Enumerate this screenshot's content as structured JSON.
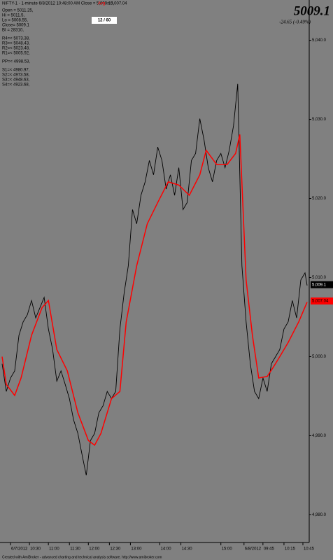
{
  "chart_data": {
    "type": "line",
    "title": "NIFTY-1 - 1-minute 6/8/2012 10:48:00 AM Close = 5,009.10,",
    "title_red": "Avg",
    "title_tail": "= 5,007.04",
    "info_lines": [
      "Open =  5011.25,",
      "Hi      =  5011.5,",
      "Lo      =  5008.55,",
      "Close=  5009.1",
      "BI  =  28310,",
      "R4=<  5073.38,",
      "R3=<  5048.43,",
      "R2=<  5023.48,",
      "R1=<  5005.92,",
      "PP=<  4998.53,",
      "S1=<  4980.97,",
      "S2=<  4973.58,",
      "S3=<  4948.63,",
      "S4=<  4923.68,"
    ],
    "counter": "12 / 60",
    "last_price": "5009.1",
    "change": "-24.65  (-0.49%)",
    "footer": "Created with AmiBroker - advanced charting and technical analysis software. http://www.amibroker.com",
    "xlim": [
      0,
      147
    ],
    "xticks": [
      {
        "value": 5,
        "label": "6/7/2012"
      },
      {
        "value": 14,
        "label": "10:30"
      },
      {
        "value": 23,
        "label": "11:00"
      },
      {
        "value": 33,
        "label": "11:30"
      },
      {
        "value": 42,
        "label": "12:00"
      },
      {
        "value": 52,
        "label": "12:30"
      },
      {
        "value": 62,
        "label": "13:00"
      },
      {
        "value": 76,
        "label": "14:00"
      },
      {
        "value": 86,
        "label": "14:30"
      },
      {
        "value": 105,
        "label": "15:00"
      },
      {
        "value": 116,
        "label": "6/8/2012"
      },
      {
        "value": 125,
        "label": "09:45"
      },
      {
        "value": 135,
        "label": "10:15"
      },
      {
        "value": 144,
        "label": "10:45"
      }
    ],
    "ylim": [
      4976.5,
      5045.1
    ],
    "yticks": [
      {
        "value": 4980,
        "label": "4,980.0"
      },
      {
        "value": 4990,
        "label": "4,990.0"
      },
      {
        "value": 5000,
        "label": "5,000.0"
      },
      {
        "value": 5010,
        "label": "5,010.0"
      },
      {
        "value": 5020,
        "label": "5,020.0"
      },
      {
        "value": 5030,
        "label": "5,030.0"
      },
      {
        "value": 5040,
        "label": "5,040.0"
      }
    ],
    "series": [
      {
        "name": "NIFTY-1",
        "color": "#000000",
        "x": [
          1,
          3,
          5,
          7,
          9,
          11,
          13,
          15,
          17,
          19,
          21,
          23,
          25,
          27,
          29,
          31,
          33,
          35,
          37,
          39,
          41,
          43,
          45,
          47,
          49,
          51,
          53,
          55,
          57,
          59,
          61,
          63,
          65,
          67,
          69,
          71,
          73,
          75,
          77,
          79,
          81,
          83,
          85,
          87,
          89,
          91,
          93,
          95,
          97,
          99,
          101,
          103,
          105,
          107,
          109,
          111,
          113,
          115,
          117,
          119,
          121,
          123,
          125,
          127,
          129,
          131,
          133,
          135,
          137,
          139,
          141,
          143,
          145,
          146
        ],
        "values": [
          4999.1,
          4995.6,
          4997.3,
          4998.2,
          5002.7,
          5004.4,
          5005.3,
          5007.1,
          5004.9,
          5006.2,
          5007.5,
          5003.5,
          5000.9,
          4996.9,
          4998.2,
          4996.5,
          4994.7,
          4992.0,
          4990.3,
          4987.6,
          4985.0,
          4989.4,
          4990.3,
          4992.9,
          4993.8,
          4995.6,
          4994.7,
          4995.6,
          5003.5,
          5008.0,
          5011.5,
          5018.6,
          5016.8,
          5020.4,
          5022.1,
          5024.8,
          5023.0,
          5026.5,
          5024.8,
          5021.2,
          5023.0,
          5020.4,
          5023.9,
          5018.6,
          5019.5,
          5024.8,
          5025.7,
          5030.1,
          5027.4,
          5023.9,
          5022.1,
          5024.8,
          5025.7,
          5023.9,
          5026.1,
          5029.2,
          5034.5,
          5011.5,
          5004.4,
          4999.1,
          4995.6,
          4994.7,
          4997.3,
          4995.6,
          4999.1,
          5000.0,
          5000.9,
          5003.5,
          5004.4,
          5007.1,
          5004.9,
          5009.7,
          5010.6,
          5009.0
        ]
      },
      {
        "color": "#ff0000",
        "x": [
          1,
          3,
          7,
          10,
          15,
          20,
          23,
          27,
          32,
          37,
          42,
          45,
          48,
          53,
          57,
          60,
          65,
          70,
          75,
          80,
          85,
          90,
          95,
          98,
          103,
          108,
          112,
          114,
          117,
          120,
          123,
          127,
          130,
          133,
          137,
          142,
          146
        ],
        "values": [
          5000.0,
          4996.5,
          4995.1,
          4997.3,
          5002.7,
          5006.2,
          5007.1,
          5000.9,
          4998.2,
          4992.9,
          4989.4,
          4988.8,
          4990.3,
          4994.7,
          4995.6,
          5004.4,
          5011.5,
          5016.8,
          5019.5,
          5022.1,
          5021.7,
          5020.4,
          5023.0,
          5026.1,
          5024.3,
          5024.3,
          5025.7,
          5028.1,
          5009.7,
          5002.7,
          4997.3,
          4997.5,
          4998.7,
          5000.0,
          5001.8,
          5004.4,
          5006.9
        ]
      }
    ],
    "markers": [
      {
        "value": 5009.1,
        "label": "5,009.1",
        "color": "#000000"
      },
      {
        "value": 5007.04,
        "label": "5,007.04",
        "color": "#ff0000"
      }
    ]
  }
}
